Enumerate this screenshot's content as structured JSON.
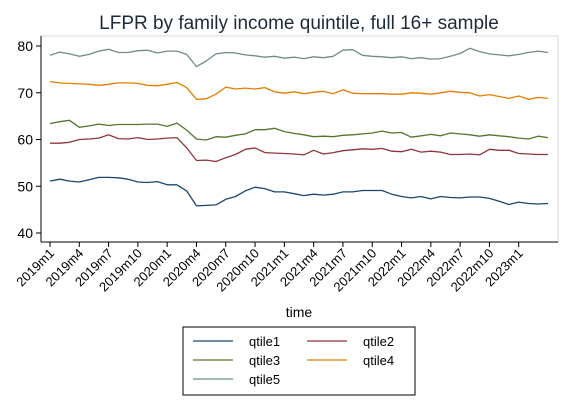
{
  "chart_data": {
    "type": "line",
    "title": "LFPR by family income quintile, full 16+ sample",
    "xlabel": "time",
    "ylabel": "",
    "ylim": [
      40,
      80
    ],
    "y_ticks": [
      40,
      50,
      60,
      70,
      80
    ],
    "grid": false,
    "legend_position": "bottom",
    "x": [
      "2019m1",
      "2019m2",
      "2019m3",
      "2019m4",
      "2019m5",
      "2019m6",
      "2019m7",
      "2019m8",
      "2019m9",
      "2019m10",
      "2019m11",
      "2019m12",
      "2020m1",
      "2020m2",
      "2020m3",
      "2020m4",
      "2020m5",
      "2020m6",
      "2020m7",
      "2020m8",
      "2020m9",
      "2020m10",
      "2020m11",
      "2020m12",
      "2021m1",
      "2021m2",
      "2021m3",
      "2021m4",
      "2021m5",
      "2021m6",
      "2021m7",
      "2021m8",
      "2021m9",
      "2021m10",
      "2021m11",
      "2021m12",
      "2022m1",
      "2022m2",
      "2022m3",
      "2022m4",
      "2022m5",
      "2022m6",
      "2022m7",
      "2022m8",
      "2022m9",
      "2022m10",
      "2022m11",
      "2022m12",
      "2023m1",
      "2023m2",
      "2023m3",
      "2023m4"
    ],
    "x_tick_labels": [
      "2019m1",
      "2019m4",
      "2019m7",
      "2019m10",
      "2020m1",
      "2020m4",
      "2020m7",
      "2020m10",
      "2021m1",
      "2021m4",
      "2021m7",
      "2021m10",
      "2022m1",
      "2022m4",
      "2022m7",
      "2022m10",
      "2023m1"
    ],
    "series": [
      {
        "name": "qtile1",
        "color": "#1a476f",
        "values": [
          51.1,
          51.5,
          51.1,
          50.9,
          51.4,
          51.9,
          51.9,
          51.8,
          51.5,
          50.9,
          50.8,
          51.0,
          50.3,
          50.3,
          49.0,
          45.8,
          45.9,
          46.0,
          47.2,
          47.8,
          49.0,
          49.8,
          49.5,
          48.8,
          48.8,
          48.4,
          48.0,
          48.3,
          48.1,
          48.3,
          48.8,
          48.8,
          49.1,
          49.1,
          49.1,
          48.3,
          47.8,
          47.5,
          47.8,
          47.3,
          47.8,
          47.6,
          47.5,
          47.7,
          47.7,
          47.4,
          46.8,
          46.1,
          46.6,
          46.3,
          46.2,
          46.3
        ]
      },
      {
        "name": "qtile2",
        "color": "#90353b",
        "values": [
          59.2,
          59.2,
          59.4,
          60.0,
          60.1,
          60.3,
          61.0,
          60.2,
          60.1,
          60.4,
          60.0,
          60.1,
          60.3,
          60.4,
          58.2,
          55.5,
          55.6,
          55.3,
          56.1,
          56.8,
          57.9,
          58.2,
          57.2,
          57.1,
          57.0,
          56.9,
          56.7,
          57.7,
          56.9,
          57.2,
          57.6,
          57.8,
          58.0,
          57.9,
          58.1,
          57.5,
          57.4,
          57.9,
          57.3,
          57.5,
          57.3,
          56.8,
          56.8,
          56.9,
          56.7,
          57.9,
          57.7,
          57.7,
          57.0,
          56.9,
          56.8,
          56.8
        ]
      },
      {
        "name": "qtile3",
        "color": "#55752f",
        "values": [
          63.4,
          63.8,
          64.1,
          62.6,
          62.9,
          63.3,
          63.0,
          63.2,
          63.2,
          63.2,
          63.3,
          63.3,
          62.8,
          63.5,
          62.0,
          60.1,
          59.9,
          60.6,
          60.5,
          60.9,
          61.2,
          62.1,
          62.1,
          62.4,
          61.7,
          61.3,
          61.0,
          60.6,
          60.7,
          60.6,
          60.9,
          61.0,
          61.2,
          61.4,
          61.8,
          61.4,
          61.5,
          60.5,
          60.8,
          61.1,
          60.8,
          61.4,
          61.2,
          61.0,
          60.7,
          61.0,
          60.8,
          60.6,
          60.3,
          60.1,
          60.7,
          60.4
        ]
      },
      {
        "name": "qtile4",
        "color": "#e37e00",
        "values": [
          72.4,
          72.1,
          72.0,
          71.9,
          71.8,
          71.6,
          71.8,
          72.1,
          72.1,
          72.0,
          71.6,
          71.5,
          71.8,
          72.2,
          71.1,
          68.6,
          68.7,
          69.7,
          71.2,
          70.8,
          71.0,
          70.8,
          71.1,
          70.2,
          69.9,
          70.2,
          69.8,
          70.1,
          70.3,
          69.8,
          70.6,
          69.9,
          69.8,
          69.8,
          69.8,
          69.7,
          69.7,
          70.0,
          69.9,
          69.7,
          70.0,
          70.3,
          70.1,
          70.0,
          69.3,
          69.6,
          69.2,
          68.8,
          69.3,
          68.6,
          69.0,
          68.8
        ]
      },
      {
        "name": "qtile5",
        "color": "#6e8e84",
        "values": [
          78.0,
          78.7,
          78.3,
          77.8,
          78.2,
          78.9,
          79.3,
          78.6,
          78.6,
          79.0,
          79.1,
          78.5,
          78.9,
          78.9,
          78.2,
          75.6,
          76.8,
          78.3,
          78.6,
          78.5,
          78.1,
          77.9,
          77.6,
          77.8,
          77.4,
          77.6,
          77.3,
          77.7,
          77.5,
          77.8,
          79.1,
          79.2,
          78.0,
          77.8,
          77.7,
          77.5,
          77.7,
          77.3,
          77.5,
          77.2,
          77.3,
          77.8,
          78.4,
          79.5,
          78.8,
          78.3,
          78.1,
          77.9,
          78.2,
          78.6,
          78.9,
          78.6
        ]
      }
    ]
  }
}
